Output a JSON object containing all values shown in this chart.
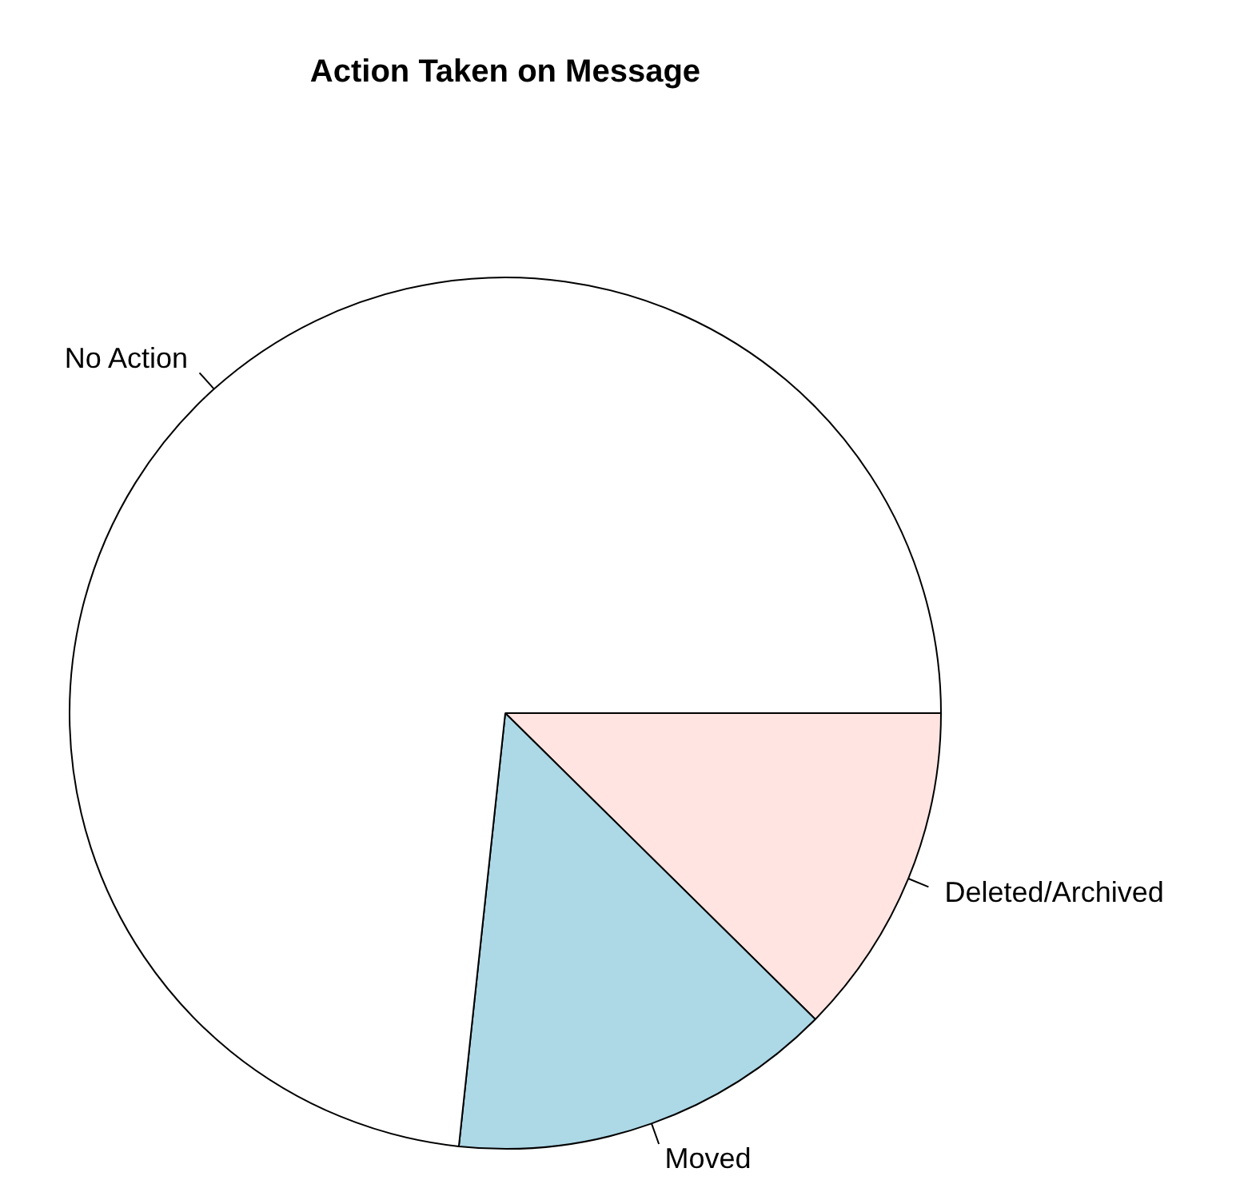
{
  "chart_data": {
    "type": "pie",
    "title": "Action Taken on Message",
    "categories": [
      "No Action",
      "Moved",
      "Deleted/Archived"
    ],
    "values": [
      73.3,
      14.3,
      12.4
    ],
    "colors": [
      "#ffffff",
      "#add8e6",
      "#ffe4e1"
    ],
    "legend": false
  }
}
